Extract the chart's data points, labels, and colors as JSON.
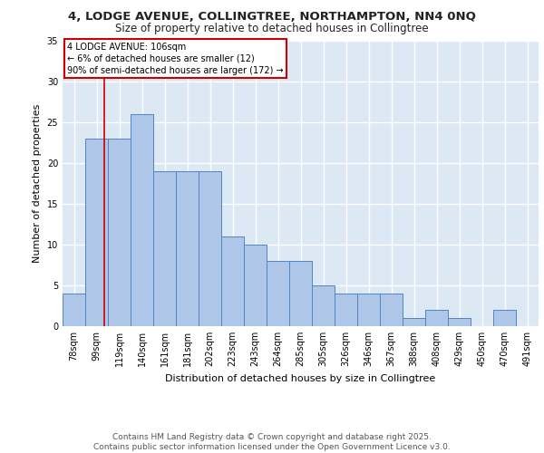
{
  "title_line1": "4, LODGE AVENUE, COLLINGTREE, NORTHAMPTON, NN4 0NQ",
  "title_line2": "Size of property relative to detached houses in Collingtree",
  "xlabel": "Distribution of detached houses by size in Collingtree",
  "ylabel": "Number of detached properties",
  "categories": [
    "78sqm",
    "99sqm",
    "119sqm",
    "140sqm",
    "161sqm",
    "181sqm",
    "202sqm",
    "223sqm",
    "243sqm",
    "264sqm",
    "285sqm",
    "305sqm",
    "326sqm",
    "346sqm",
    "367sqm",
    "388sqm",
    "408sqm",
    "429sqm",
    "450sqm",
    "470sqm",
    "491sqm"
  ],
  "values": [
    4,
    23,
    23,
    26,
    19,
    19,
    19,
    11,
    10,
    8,
    8,
    5,
    4,
    4,
    4,
    1,
    2,
    1,
    0,
    2,
    0
  ],
  "bar_color": "#aec6e8",
  "bar_edge_color": "#4f86c0",
  "bg_color": "#dde8f5",
  "grid_color": "#ffffff",
  "annotation_box_text": "4 LODGE AVENUE: 106sqm\n← 6% of detached houses are smaller (12)\n90% of semi-detached houses are larger (172) →",
  "annotation_box_color": "#cc0000",
  "vline_color": "#cc0000",
  "vline_x": 1.35,
  "ylim": [
    0,
    35
  ],
  "yticks": [
    0,
    5,
    10,
    15,
    20,
    25,
    30,
    35
  ],
  "footer_line1": "Contains HM Land Registry data © Crown copyright and database right 2025.",
  "footer_line2": "Contains public sector information licensed under the Open Government Licence v3.0.",
  "title_fontsize": 9.5,
  "subtitle_fontsize": 8.5,
  "axis_label_fontsize": 8,
  "tick_fontsize": 7,
  "annotation_fontsize": 7,
  "footer_fontsize": 6.5
}
